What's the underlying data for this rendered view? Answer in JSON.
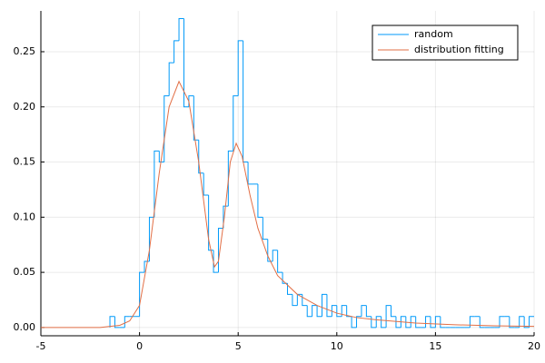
{
  "chart_data": {
    "type": "histogram",
    "xlim": [
      -5,
      20
    ],
    "xticks": [
      -5,
      0,
      5,
      10,
      15,
      20
    ],
    "ylim": [
      -0.0075,
      0.287
    ],
    "yticks": [
      {
        "value": 0,
        "label": "0.00"
      },
      {
        "value": 0.05,
        "label": "0.05"
      },
      {
        "value": 0.1,
        "label": "0.10"
      },
      {
        "value": 0.15,
        "label": "0.15"
      },
      {
        "value": 0.2,
        "label": "0.20"
      },
      {
        "value": 0.25,
        "label": "0.25"
      }
    ],
    "grid": true,
    "legend": "top-right",
    "series": [
      {
        "name": "random",
        "type": "step",
        "color": "#009af9",
        "bins": [
          -1.5,
          -1.25,
          -1,
          -0.75,
          -0.5,
          -0.25,
          0,
          0.25,
          0.5,
          0.75,
          1,
          1.25,
          1.5,
          1.75,
          2,
          2.25,
          2.5,
          2.75,
          3,
          3.25,
          3.5,
          3.75,
          4,
          4.25,
          4.5,
          4.75,
          5,
          5.25,
          5.5,
          5.75,
          6,
          6.25,
          6.5,
          6.75,
          7,
          7.25,
          7.5,
          7.75,
          8,
          8.25,
          8.5,
          8.75,
          9,
          9.25,
          9.5,
          9.75,
          10,
          10.25,
          10.5,
          10.75,
          11,
          11.25,
          11.5,
          11.75,
          12,
          12.25,
          12.5,
          12.75,
          13,
          13.25,
          13.5,
          13.75,
          14,
          14.25,
          14.5,
          14.75,
          15,
          15.25,
          15.5,
          15.75,
          16,
          16.25,
          16.5,
          16.75,
          17,
          17.25,
          17.5,
          17.75,
          18,
          18.25,
          18.5,
          18.75,
          19,
          19.25,
          19.5,
          19.75,
          20
        ],
        "values": [
          0.01,
          0,
          0,
          0.01,
          0.01,
          0.01,
          0.05,
          0.06,
          0.1,
          0.16,
          0.15,
          0.21,
          0.24,
          0.26,
          0.28,
          0.2,
          0.21,
          0.17,
          0.14,
          0.12,
          0.07,
          0.05,
          0.09,
          0.11,
          0.16,
          0.21,
          0.26,
          0.15,
          0.13,
          0.13,
          0.1,
          0.08,
          0.06,
          0.07,
          0.05,
          0.04,
          0.03,
          0.02,
          0.03,
          0.02,
          0.01,
          0.02,
          0.01,
          0.03,
          0.01,
          0.02,
          0.01,
          0.02,
          0.01,
          0,
          0.01,
          0.02,
          0.01,
          0,
          0.01,
          0,
          0.02,
          0.01,
          0,
          0.01,
          0,
          0.01,
          0,
          0,
          0.01,
          0,
          0.01,
          0,
          0,
          0,
          0,
          0,
          0,
          0.01,
          0.01,
          0,
          0,
          0,
          0,
          0.01,
          0.01,
          0,
          0,
          0.01,
          0,
          0.01
        ]
      },
      {
        "name": "distribution fitting",
        "type": "line",
        "color": "#e26f46",
        "x": [
          -5,
          -2,
          -1,
          -0.5,
          0,
          0.5,
          1,
          1.5,
          2,
          2.5,
          3,
          3.5,
          3.8,
          4,
          4.3,
          4.6,
          4.9,
          5.2,
          5.6,
          6,
          6.5,
          7,
          8,
          9,
          10,
          11,
          12,
          14,
          16,
          18,
          20
        ],
        "values": [
          0,
          0,
          0.002,
          0.006,
          0.02,
          0.07,
          0.14,
          0.2,
          0.223,
          0.205,
          0.15,
          0.08,
          0.055,
          0.06,
          0.1,
          0.15,
          0.167,
          0.155,
          0.12,
          0.09,
          0.065,
          0.047,
          0.03,
          0.02,
          0.013,
          0.009,
          0.007,
          0.004,
          0.0025,
          0.0015,
          0.001
        ]
      }
    ]
  }
}
